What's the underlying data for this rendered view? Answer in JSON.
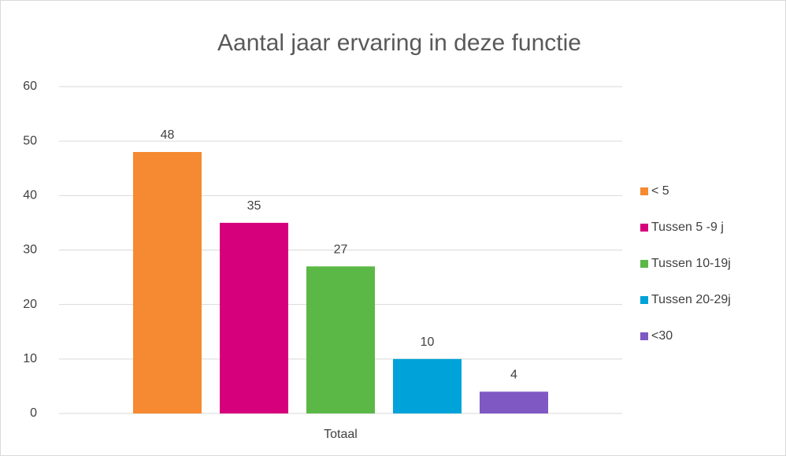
{
  "chart_data": {
    "type": "bar",
    "title": "Aantal jaar ervaring in deze functie",
    "categories": [
      "Totaal"
    ],
    "series": [
      {
        "name": "< 5",
        "color": "#f58a32",
        "values": [
          48
        ]
      },
      {
        "name": "Tussen 5 -9 j",
        "color": "#d6007d",
        "values": [
          35
        ]
      },
      {
        "name": "Tussen 10-19j",
        "color": "#5bb847",
        "values": [
          27
        ]
      },
      {
        "name": "Tussen 20-29j",
        "color": "#00a3d9",
        "values": [
          10
        ]
      },
      {
        "name": "<30",
        "color": "#7f58c4",
        "values": [
          4
        ]
      }
    ],
    "ylim": [
      0,
      60
    ],
    "yticks": [
      0,
      10,
      20,
      30,
      40,
      50,
      60
    ],
    "grid": true,
    "legend": "right"
  }
}
